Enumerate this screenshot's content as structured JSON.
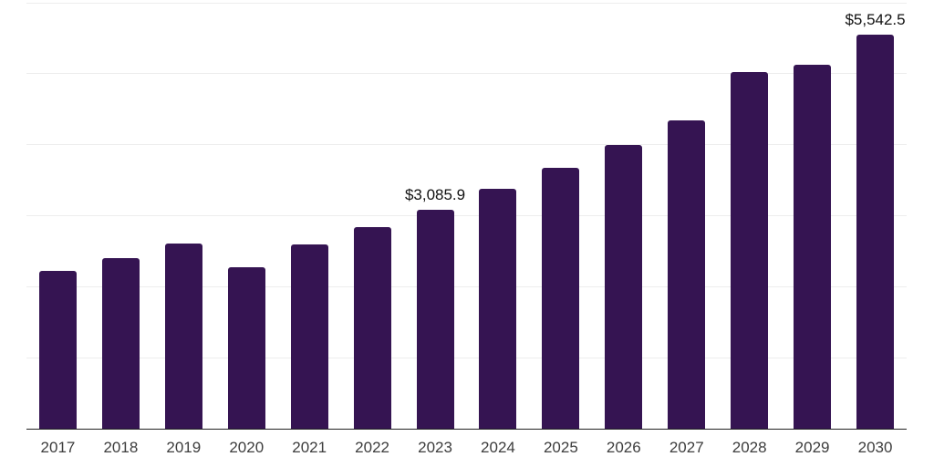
{
  "chart_data": {
    "type": "bar",
    "title": "",
    "xlabel": "",
    "ylabel": "",
    "categories": [
      "2017",
      "2018",
      "2019",
      "2020",
      "2021",
      "2022",
      "2023",
      "2024",
      "2025",
      "2026",
      "2027",
      "2028",
      "2029",
      "2030"
    ],
    "values": [
      2217,
      2396,
      2610,
      2274,
      2588,
      2838,
      3085.9,
      3380,
      3671,
      3996,
      4344,
      5022,
      5126,
      5542.5
    ],
    "data_labels": [
      {
        "category_index": 6,
        "text": "$3,085.9"
      },
      {
        "category_index": 13,
        "text": "$5,542.5"
      }
    ],
    "ylim": [
      0,
      6000
    ],
    "grid_interval": 1000,
    "grid": "horizontal-only",
    "legend": "none",
    "y_tick_labels_visible": false,
    "colors": {
      "bar": "#351452",
      "gridline": "#ededed",
      "axis_line": "#222222",
      "x_tick_label": "#3d3d3d",
      "data_label": "#111111",
      "background": "#ffffff"
    }
  }
}
